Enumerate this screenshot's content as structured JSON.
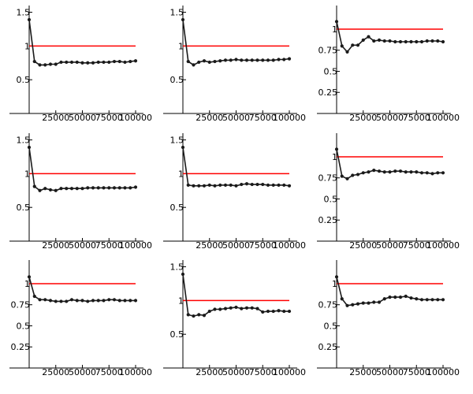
{
  "style": {
    "series_color": "#1a1a1a",
    "reference_color": "#ff0000",
    "axis_color": "#000000"
  },
  "chart_data": [
    {
      "type": "line",
      "ylim": [
        0,
        1.6
      ],
      "xlim": [
        0,
        100000
      ],
      "reference_line": 1,
      "grid": false,
      "xticks": [
        25000,
        50000,
        75000,
        100000
      ],
      "xtick_labels": [
        "25000",
        "50000",
        "75000",
        "100000"
      ],
      "yticks": [
        0.5,
        1,
        1.5
      ],
      "ytick_labels": [
        "0.5",
        "1",
        "1.5"
      ],
      "x": [
        0,
        5000,
        10000,
        15000,
        20000,
        25000,
        30000,
        35000,
        40000,
        45000,
        50000,
        55000,
        60000,
        65000,
        70000,
        75000,
        80000,
        85000,
        90000,
        95000,
        100000
      ],
      "values": [
        1.39,
        0.77,
        0.72,
        0.72,
        0.73,
        0.73,
        0.76,
        0.76,
        0.76,
        0.76,
        0.75,
        0.75,
        0.75,
        0.76,
        0.76,
        0.76,
        0.77,
        0.77,
        0.76,
        0.77,
        0.78
      ]
    },
    {
      "type": "line",
      "ylim": [
        0,
        1.6
      ],
      "xlim": [
        0,
        100000
      ],
      "reference_line": 1,
      "grid": false,
      "xticks": [
        25000,
        50000,
        75000,
        100000
      ],
      "xtick_labels": [
        "25000",
        "50000",
        "75000",
        "100000"
      ],
      "yticks": [
        0.5,
        1,
        1.5
      ],
      "ytick_labels": [
        "0.5",
        "1",
        "1.5"
      ],
      "x": [
        0,
        5000,
        10000,
        15000,
        20000,
        25000,
        30000,
        35000,
        40000,
        45000,
        50000,
        55000,
        60000,
        65000,
        70000,
        75000,
        80000,
        85000,
        90000,
        95000,
        100000
      ],
      "values": [
        1.39,
        0.77,
        0.72,
        0.76,
        0.78,
        0.76,
        0.77,
        0.78,
        0.79,
        0.79,
        0.8,
        0.79,
        0.79,
        0.79,
        0.79,
        0.79,
        0.79,
        0.79,
        0.8,
        0.8,
        0.81
      ]
    },
    {
      "type": "line",
      "ylim": [
        0,
        1.28
      ],
      "xlim": [
        0,
        100000
      ],
      "reference_line": 1,
      "grid": false,
      "xticks": [
        25000,
        50000,
        75000,
        100000
      ],
      "xtick_labels": [
        "25000",
        "50000",
        "75000",
        "100000"
      ],
      "yticks": [
        0.25,
        0.5,
        0.75,
        1
      ],
      "ytick_labels": [
        "0.25",
        "0.5",
        "0.75",
        "1"
      ],
      "x": [
        0,
        5000,
        10000,
        15000,
        20000,
        25000,
        30000,
        35000,
        40000,
        45000,
        50000,
        55000,
        60000,
        65000,
        70000,
        75000,
        80000,
        85000,
        90000,
        95000,
        100000
      ],
      "values": [
        1.09,
        0.8,
        0.73,
        0.81,
        0.81,
        0.87,
        0.91,
        0.86,
        0.87,
        0.86,
        0.86,
        0.85,
        0.85,
        0.85,
        0.85,
        0.85,
        0.85,
        0.86,
        0.86,
        0.86,
        0.85
      ]
    },
    {
      "type": "line",
      "ylim": [
        0,
        1.6
      ],
      "xlim": [
        0,
        100000
      ],
      "reference_line": 1,
      "grid": false,
      "xticks": [
        25000,
        50000,
        75000,
        100000
      ],
      "xtick_labels": [
        "25000",
        "50000",
        "75000",
        "100000"
      ],
      "yticks": [
        0.5,
        1,
        1.5
      ],
      "ytick_labels": [
        "0.5",
        "1",
        "1.5"
      ],
      "x": [
        0,
        5000,
        10000,
        15000,
        20000,
        25000,
        30000,
        35000,
        40000,
        45000,
        50000,
        55000,
        60000,
        65000,
        70000,
        75000,
        80000,
        85000,
        90000,
        95000,
        100000
      ],
      "values": [
        1.39,
        0.81,
        0.75,
        0.78,
        0.76,
        0.75,
        0.78,
        0.78,
        0.78,
        0.78,
        0.78,
        0.79,
        0.79,
        0.79,
        0.79,
        0.79,
        0.79,
        0.79,
        0.79,
        0.79,
        0.8
      ]
    },
    {
      "type": "line",
      "ylim": [
        0,
        1.6
      ],
      "xlim": [
        0,
        100000
      ],
      "reference_line": 1,
      "grid": false,
      "xticks": [
        25000,
        50000,
        75000,
        100000
      ],
      "xtick_labels": [
        "25000",
        "50000",
        "75000",
        "100000"
      ],
      "yticks": [
        0.5,
        1,
        1.5
      ],
      "ytick_labels": [
        "0.5",
        "1",
        "1.5"
      ],
      "x": [
        0,
        5000,
        10000,
        15000,
        20000,
        25000,
        30000,
        35000,
        40000,
        45000,
        50000,
        55000,
        60000,
        65000,
        70000,
        75000,
        80000,
        85000,
        90000,
        95000,
        100000
      ],
      "values": [
        1.39,
        0.83,
        0.82,
        0.82,
        0.82,
        0.83,
        0.82,
        0.83,
        0.83,
        0.83,
        0.82,
        0.84,
        0.85,
        0.84,
        0.84,
        0.84,
        0.83,
        0.83,
        0.83,
        0.83,
        0.82
      ]
    },
    {
      "type": "line",
      "ylim": [
        0,
        1.28
      ],
      "xlim": [
        0,
        100000
      ],
      "reference_line": 1,
      "grid": false,
      "xticks": [
        25000,
        50000,
        75000,
        100000
      ],
      "xtick_labels": [
        "25000",
        "50000",
        "75000",
        "100000"
      ],
      "yticks": [
        0.25,
        0.5,
        0.75,
        1
      ],
      "ytick_labels": [
        "0.25",
        "0.5",
        "0.75",
        "1"
      ],
      "x": [
        0,
        5000,
        10000,
        15000,
        20000,
        25000,
        30000,
        35000,
        40000,
        45000,
        50000,
        55000,
        60000,
        65000,
        70000,
        75000,
        80000,
        85000,
        90000,
        95000,
        100000
      ],
      "values": [
        1.09,
        0.77,
        0.74,
        0.78,
        0.79,
        0.81,
        0.82,
        0.84,
        0.83,
        0.82,
        0.82,
        0.83,
        0.83,
        0.82,
        0.82,
        0.82,
        0.81,
        0.81,
        0.8,
        0.81,
        0.81
      ]
    },
    {
      "type": "line",
      "ylim": [
        0,
        1.28
      ],
      "xlim": [
        0,
        100000
      ],
      "reference_line": 1,
      "grid": false,
      "xticks": [
        25000,
        50000,
        75000,
        100000
      ],
      "xtick_labels": [
        "25000",
        "50000",
        "75000",
        "100000"
      ],
      "yticks": [
        0.25,
        0.5,
        0.75,
        1
      ],
      "ytick_labels": [
        "0.25",
        "0.5",
        "0.75",
        "1"
      ],
      "x": [
        0,
        5000,
        10000,
        15000,
        20000,
        25000,
        30000,
        35000,
        40000,
        45000,
        50000,
        55000,
        60000,
        65000,
        70000,
        75000,
        80000,
        85000,
        90000,
        95000,
        100000
      ],
      "values": [
        1.08,
        0.85,
        0.81,
        0.81,
        0.8,
        0.79,
        0.79,
        0.79,
        0.81,
        0.8,
        0.8,
        0.79,
        0.8,
        0.8,
        0.8,
        0.81,
        0.81,
        0.8,
        0.8,
        0.8,
        0.8
      ]
    },
    {
      "type": "line",
      "ylim": [
        0,
        1.6
      ],
      "xlim": [
        0,
        100000
      ],
      "reference_line": 1,
      "grid": false,
      "xticks": [
        25000,
        50000,
        75000,
        100000
      ],
      "xtick_labels": [
        "25000",
        "50000",
        "75000",
        "100000"
      ],
      "yticks": [
        0.5,
        1,
        1.5
      ],
      "ytick_labels": [
        "0.5",
        "1",
        "1.5"
      ],
      "x": [
        0,
        5000,
        10000,
        15000,
        20000,
        25000,
        30000,
        35000,
        40000,
        45000,
        50000,
        55000,
        60000,
        65000,
        70000,
        75000,
        80000,
        85000,
        90000,
        95000,
        100000
      ],
      "values": [
        1.39,
        0.79,
        0.77,
        0.79,
        0.78,
        0.84,
        0.87,
        0.87,
        0.88,
        0.89,
        0.9,
        0.88,
        0.89,
        0.89,
        0.88,
        0.83,
        0.84,
        0.84,
        0.85,
        0.84,
        0.84
      ]
    },
    {
      "type": "line",
      "ylim": [
        0,
        1.28
      ],
      "xlim": [
        0,
        100000
      ],
      "reference_line": 1,
      "grid": false,
      "xticks": [
        25000,
        50000,
        75000,
        100000
      ],
      "xtick_labels": [
        "25000",
        "50000",
        "75000",
        "100000"
      ],
      "yticks": [
        0.25,
        0.5,
        0.75,
        1
      ],
      "ytick_labels": [
        "0.25",
        "0.5",
        "0.75",
        "1"
      ],
      "x": [
        0,
        5000,
        10000,
        15000,
        20000,
        25000,
        30000,
        35000,
        40000,
        45000,
        50000,
        55000,
        60000,
        65000,
        70000,
        75000,
        80000,
        85000,
        90000,
        95000,
        100000
      ],
      "values": [
        1.08,
        0.82,
        0.74,
        0.75,
        0.76,
        0.77,
        0.77,
        0.78,
        0.78,
        0.82,
        0.84,
        0.84,
        0.84,
        0.85,
        0.83,
        0.82,
        0.81,
        0.81,
        0.81,
        0.81,
        0.81
      ]
    }
  ]
}
